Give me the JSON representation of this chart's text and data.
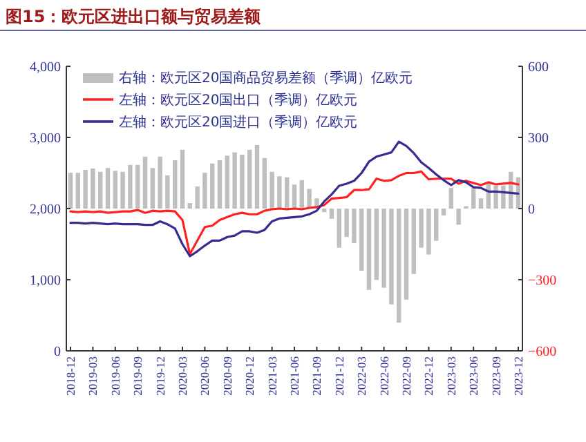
{
  "chart_data": {
    "type": "bar",
    "title": "图15：欧元区进出口额与贸易差额",
    "categories": [
      "2018-12",
      null,
      null,
      "2019-03",
      null,
      null,
      "2019-06",
      null,
      null,
      "2019-09",
      null,
      null,
      "2019-12",
      null,
      null,
      "2020-03",
      null,
      null,
      "2020-06",
      null,
      null,
      "2020-09",
      null,
      null,
      "2020-12",
      null,
      null,
      "2021-03",
      null,
      null,
      "2021-06",
      null,
      null,
      "2021-09",
      null,
      null,
      "2021-12",
      null,
      null,
      "2022-03",
      null,
      null,
      "2022-06",
      null,
      null,
      "2022-09",
      null,
      null,
      "2022-12",
      null,
      null,
      "2023-03",
      null,
      null,
      "2023-06",
      null,
      null,
      "2023-09",
      null,
      null,
      "2023-12"
    ],
    "series": [
      {
        "name": "右轴：欧元区20国商品贸易差额（季调）亿欧元",
        "axis": "y2",
        "color": "#bfbfbf",
        "values": [
          151,
          151,
          163,
          169,
          155,
          171,
          159,
          155,
          184,
          184,
          219,
          171,
          219,
          140,
          204,
          248,
          23,
          93,
          151,
          190,
          204,
          223,
          237,
          227,
          248,
          268,
          213,
          155,
          136,
          132,
          101,
          120,
          83,
          43,
          -15,
          -43,
          -165,
          -120,
          -146,
          -262,
          -343,
          -301,
          -334,
          -404,
          -481,
          -384,
          -276,
          -165,
          -194,
          -136,
          -29,
          87,
          -68,
          10,
          87,
          43,
          107,
          97,
          97,
          155,
          132
        ]
      },
      {
        "name": "左轴：欧元区20国出口（季调）亿欧元",
        "type": "line",
        "color": "#ff2020",
        "values": [
          1960,
          1950,
          1960,
          1950,
          1960,
          1940,
          1950,
          1960,
          1960,
          1980,
          1940,
          1970,
          1960,
          1970,
          1960,
          1840,
          1360,
          1550,
          1740,
          1760,
          1840,
          1880,
          1920,
          1940,
          1920,
          1920,
          1970,
          1990,
          2000,
          1990,
          2000,
          1990,
          2010,
          2020,
          2050,
          2140,
          2150,
          2160,
          2260,
          2260,
          2270,
          2420,
          2390,
          2400,
          2460,
          2500,
          2500,
          2520,
          2410,
          2420,
          2420,
          2420,
          2350,
          2390,
          2360,
          2330,
          2370,
          2340,
          2350,
          2360,
          2340
        ]
      },
      {
        "name": "左轴：欧元区20国进口（季调）亿欧元",
        "type": "line",
        "color": "#3a2a90",
        "values": [
          1800,
          1800,
          1790,
          1800,
          1790,
          1780,
          1790,
          1780,
          1780,
          1780,
          1770,
          1770,
          1820,
          1780,
          1720,
          1500,
          1330,
          1400,
          1480,
          1550,
          1550,
          1600,
          1620,
          1680,
          1680,
          1660,
          1700,
          1820,
          1860,
          1870,
          1880,
          1890,
          1920,
          1970,
          2100,
          2200,
          2320,
          2350,
          2390,
          2500,
          2660,
          2730,
          2760,
          2790,
          2940,
          2880,
          2780,
          2650,
          2570,
          2480,
          2400,
          2330,
          2400,
          2370,
          2300,
          2290,
          2240,
          2240,
          2230,
          2220,
          2210
        ]
      }
    ],
    "ylim": [
      0,
      4000
    ],
    "yticks": [
      0,
      {
        "value": 1000,
        "label": "1,000"
      },
      {
        "value": 2000,
        "label": "2,000"
      },
      {
        "value": 3000,
        "label": "3,000"
      },
      {
        "value": 4000,
        "label": "4,000"
      }
    ],
    "y2lim": [
      -600,
      600
    ],
    "y2ticks": [
      -600,
      -300,
      0,
      300,
      600
    ],
    "legend": "top left",
    "grid": false
  }
}
